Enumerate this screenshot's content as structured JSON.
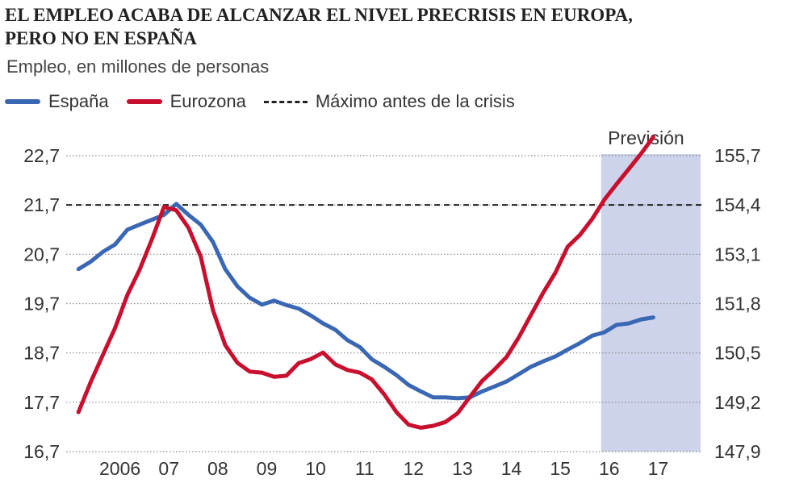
{
  "title_line1": "EL EMPLEO ACABA DE ALCANZAR EL NIVEL PRECRISIS EN EUROPA,",
  "title_line2": "PERO NO EN ESPAÑA",
  "subtitle": "Empleo, en millones de personas",
  "colors": {
    "spain": "#3a67b3",
    "eurozone": "#c8102e",
    "maximum": "#222222",
    "forecast": "#cdd3ea",
    "grid": "#888888"
  },
  "legend": {
    "spain": "España",
    "eurozone": "Eurozona",
    "maximum": "Máximo antes de la crisis"
  },
  "chart_data": {
    "type": "line",
    "title": "EL EMPLEO ACABA DE ALCANZAR EL NIVEL PRECRISIS EN EUROPA, PERO NO EN ESPAÑA",
    "ylabel": "Empleo, en millones de personas",
    "forecast_label": "Previsión",
    "forecast_range": [
      2016,
      2018
    ],
    "x_ticks": [
      2006,
      2007,
      2008,
      2009,
      2010,
      2011,
      2012,
      2013,
      2014,
      2015,
      2016,
      2017
    ],
    "x_tick_labels": [
      "2006",
      "07",
      "08",
      "09",
      "10",
      "11",
      "12",
      "13",
      "14",
      "15",
      "16",
      "17"
    ],
    "xlim": [
      2005,
      2018
    ],
    "y_left": {
      "ticks": [
        "16,7",
        "17,7",
        "18,7",
        "19,7",
        "20,7",
        "21,7",
        "22,7"
      ],
      "range": [
        16.7,
        22.7
      ]
    },
    "y_right": {
      "ticks": [
        "147,9",
        "149,2",
        "150,5",
        "151,8",
        "153,1",
        "154,4",
        "155,7"
      ],
      "range": [
        147.9,
        155.7
      ]
    },
    "max_precrisis_left": 21.7,
    "series": [
      {
        "name": "España",
        "axis": "left",
        "x": [
          2005.25,
          2005.5,
          2005.75,
          2006.0,
          2006.25,
          2006.5,
          2006.75,
          2007.0,
          2007.25,
          2007.5,
          2007.75,
          2008.0,
          2008.25,
          2008.5,
          2008.75,
          2009.0,
          2009.25,
          2009.5,
          2009.75,
          2010.0,
          2010.25,
          2010.5,
          2010.75,
          2011.0,
          2011.25,
          2011.5,
          2011.75,
          2012.0,
          2012.25,
          2012.5,
          2012.75,
          2013.0,
          2013.25,
          2013.5,
          2013.75,
          2014.0,
          2014.25,
          2014.5,
          2014.75,
          2015.0,
          2015.25,
          2015.5,
          2015.75,
          2016.0,
          2016.25,
          2016.5,
          2016.75,
          2017.0
        ],
        "values": [
          20.4,
          20.55,
          20.75,
          20.9,
          21.2,
          21.3,
          21.4,
          21.5,
          21.72,
          21.5,
          21.3,
          20.95,
          20.4,
          20.05,
          19.82,
          19.68,
          19.76,
          19.67,
          19.6,
          19.46,
          19.3,
          19.17,
          18.96,
          18.82,
          18.57,
          18.42,
          18.25,
          18.05,
          17.92,
          17.8,
          17.8,
          17.78,
          17.8,
          17.92,
          18.02,
          18.12,
          18.27,
          18.42,
          18.53,
          18.63,
          18.77,
          18.9,
          19.05,
          19.12,
          19.27,
          19.3,
          19.38,
          19.42
        ]
      },
      {
        "name": "Eurozona",
        "axis": "right",
        "x": [
          2005.25,
          2005.5,
          2005.75,
          2006.0,
          2006.25,
          2006.5,
          2006.75,
          2007.0,
          2007.25,
          2007.5,
          2007.75,
          2008.0,
          2008.25,
          2008.5,
          2008.75,
          2009.0,
          2009.25,
          2009.5,
          2009.75,
          2010.0,
          2010.25,
          2010.5,
          2010.75,
          2011.0,
          2011.25,
          2011.5,
          2011.75,
          2012.0,
          2012.25,
          2012.5,
          2012.75,
          2013.0,
          2013.25,
          2013.5,
          2013.75,
          2014.0,
          2014.25,
          2014.5,
          2014.75,
          2015.0,
          2015.25,
          2015.5,
          2015.75,
          2016.0,
          2016.25,
          2016.5,
          2016.75,
          2017.0
        ],
        "values": [
          148.94,
          149.73,
          150.45,
          151.16,
          152.03,
          152.69,
          153.49,
          154.35,
          154.26,
          153.8,
          153.04,
          151.63,
          150.71,
          150.24,
          150.01,
          149.98,
          149.87,
          149.9,
          150.23,
          150.34,
          150.51,
          150.2,
          150.05,
          149.98,
          149.8,
          149.41,
          148.94,
          148.61,
          148.53,
          148.58,
          148.68,
          148.91,
          149.34,
          149.76,
          150.06,
          150.39,
          150.91,
          151.5,
          152.09,
          152.62,
          153.3,
          153.61,
          154.03,
          154.54,
          154.95,
          155.35,
          155.75,
          156.19
        ]
      },
      {
        "name": "Máximo antes de la crisis",
        "axis": "left",
        "values": [
          21.7
        ]
      }
    ]
  }
}
